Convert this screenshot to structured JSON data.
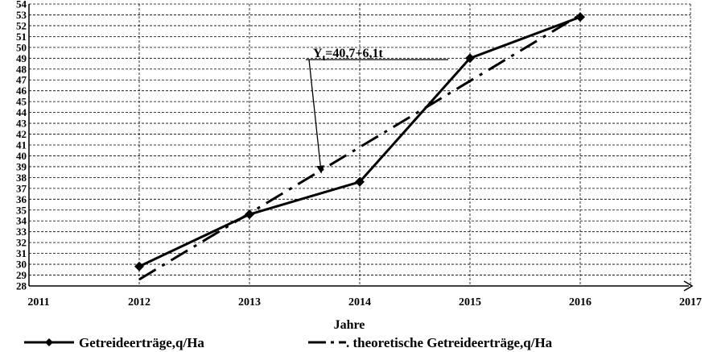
{
  "chart_data": {
    "type": "line",
    "xlabel": "Jahre",
    "x_ticks": [
      2011,
      2012,
      2013,
      2014,
      2015,
      2016,
      2017
    ],
    "y_ticks": [
      28,
      29,
      30,
      31,
      32,
      33,
      34,
      35,
      36,
      37,
      38,
      39,
      40,
      41,
      42,
      43,
      44,
      45,
      46,
      47,
      48,
      49,
      50,
      51,
      52,
      53,
      54
    ],
    "xlim": [
      2011,
      2017
    ],
    "ylim": [
      28,
      54
    ],
    "grid": true,
    "legend_position": "bottom",
    "series": [
      {
        "name": "Getreideerträge,q/Ha",
        "style": "solid-diamond",
        "x": [
          2012,
          2013,
          2014,
          2015,
          2016
        ],
        "y": [
          29.8,
          34.6,
          37.6,
          49.0,
          52.8
        ]
      },
      {
        "name": ". theoretische Getreideerträge,q/Ha",
        "style": "dash-dot",
        "x": [
          2012,
          2016
        ],
        "y": [
          28.6,
          53.0
        ]
      }
    ],
    "annotation": {
      "text": "Yt=40,7+6,1t",
      "prefix": "Y",
      "subscript": "t",
      "rest": "=40,7+6,1t",
      "arrow_target": {
        "x": 2013.65,
        "y": 38.5
      }
    }
  }
}
